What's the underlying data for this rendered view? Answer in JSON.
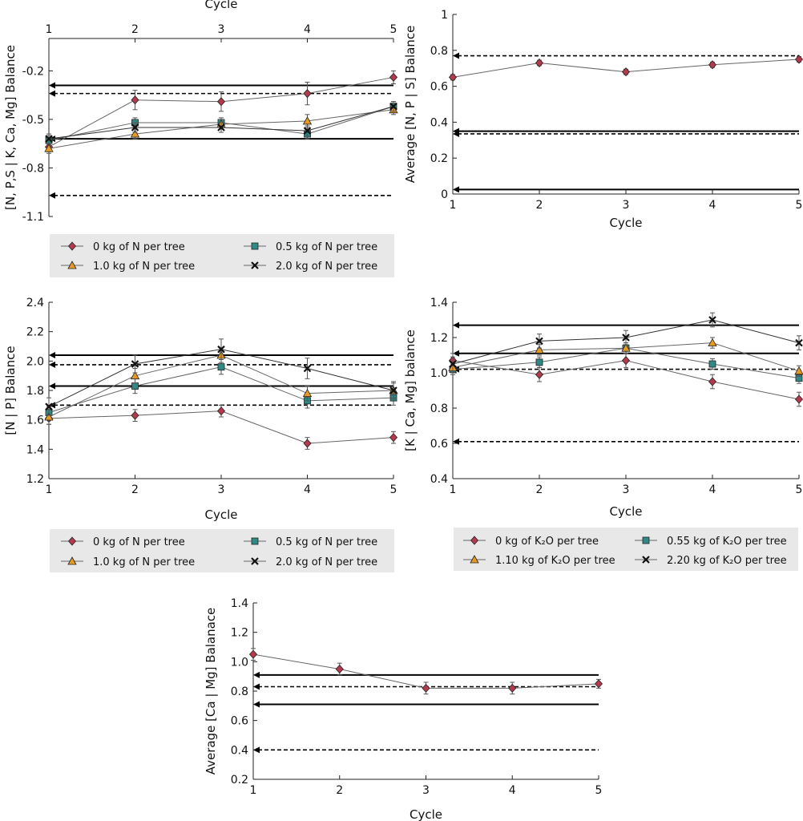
{
  "colors": {
    "s0": "#b13a4d",
    "s1": "#2f8a86",
    "s2": "#e69a24",
    "s3": "#111111",
    "line": "#666666",
    "ref": "#000000",
    "legend_bg": "#e8e8e8"
  },
  "chart_data": [
    {
      "type": "line",
      "xlabel": "Cycle",
      "xlabel_position": "top",
      "ylabel": "[N, P,S | K, Ca, Mg] Balance",
      "x": [
        1,
        2,
        3,
        4,
        5
      ],
      "xlim": [
        1,
        5
      ],
      "ylim": [
        -1.1,
        0.0
      ],
      "yticks": [
        -1.1,
        -0.8,
        -0.5,
        -0.2
      ],
      "ytick_labels": [
        "-1.1",
        "-0.8",
        "-0.5",
        "-0.2"
      ],
      "series": [
        {
          "name": "0 kg of N per tree",
          "marker": "diamond",
          "values": [
            -0.67,
            -0.38,
            -0.39,
            -0.34,
            -0.24
          ],
          "errors": [
            0.03,
            0.06,
            0.06,
            0.07,
            0.04
          ]
        },
        {
          "name": "0.5 kg of N per tree",
          "marker": "square",
          "values": [
            -0.63,
            -0.52,
            -0.52,
            -0.59,
            -0.42
          ],
          "errors": [
            0.03,
            0.03,
            0.03,
            0.03,
            0.03
          ]
        },
        {
          "name": "1.0 kg of N per tree",
          "marker": "triangle",
          "values": [
            -0.68,
            -0.59,
            -0.53,
            -0.51,
            -0.44
          ],
          "errors": [
            0.03,
            0.03,
            0.03,
            0.04,
            0.03
          ]
        },
        {
          "name": "2.0 kg of N per tree",
          "marker": "x",
          "values": [
            -0.62,
            -0.55,
            -0.55,
            -0.57,
            -0.42
          ],
          "errors": [
            0.03,
            0.03,
            0.03,
            0.03,
            0.03
          ]
        }
      ],
      "reference_lines": [
        {
          "y": -0.29,
          "style": "solid"
        },
        {
          "y": -0.34,
          "style": "dashed"
        },
        {
          "y": -0.62,
          "style": "solid"
        },
        {
          "y": -0.97,
          "style": "dashed"
        }
      ],
      "legend": {
        "placement": "below",
        "columns": 2
      }
    },
    {
      "type": "line",
      "xlabel": "Cycle",
      "ylabel": "Average [N, P | S] Balance",
      "x": [
        1,
        2,
        3,
        4,
        5
      ],
      "xlim": [
        1,
        5
      ],
      "ylim": [
        0,
        1.0
      ],
      "yticks": [
        0,
        0.2,
        0.4,
        0.6,
        0.8,
        1.0
      ],
      "ytick_labels": [
        "0",
        "0.2",
        "0.4",
        "0.6",
        "0.8",
        "1"
      ],
      "series": [
        {
          "name": "",
          "marker": "diamond",
          "values": [
            0.65,
            0.73,
            0.68,
            0.72,
            0.75
          ],
          "errors": [
            0.015,
            0.015,
            0.015,
            0.015,
            0.015
          ]
        }
      ],
      "reference_lines": [
        {
          "y": 0.77,
          "style": "dashed"
        },
        {
          "y": 0.35,
          "style": "solid"
        },
        {
          "y": 0.335,
          "style": "dashed"
        },
        {
          "y": 0.025,
          "style": "solid"
        }
      ]
    },
    {
      "type": "line",
      "xlabel": "Cycle",
      "ylabel": "[N | P] Balance",
      "x": [
        1,
        2,
        3,
        4,
        5
      ],
      "xlim": [
        1,
        5
      ],
      "ylim": [
        1.2,
        2.4
      ],
      "yticks": [
        1.2,
        1.4,
        1.6,
        1.8,
        2.0,
        2.2,
        2.4
      ],
      "ytick_labels": [
        "1.2",
        "1.4",
        "1.6",
        "1.8",
        "2.0",
        "2.2",
        "2.4"
      ],
      "series": [
        {
          "name": "0 kg of N per tree",
          "marker": "diamond",
          "values": [
            1.61,
            1.63,
            1.66,
            1.44,
            1.48
          ],
          "errors": [
            0.04,
            0.04,
            0.04,
            0.04,
            0.04
          ]
        },
        {
          "name": "0.5 kg of N per tree",
          "marker": "square",
          "values": [
            1.65,
            1.83,
            1.96,
            1.73,
            1.75
          ],
          "errors": [
            0.04,
            0.05,
            0.05,
            0.05,
            0.05
          ]
        },
        {
          "name": "1.0 kg of N per tree",
          "marker": "triangle",
          "values": [
            1.62,
            1.9,
            2.04,
            1.78,
            1.8
          ],
          "errors": [
            0.05,
            0.05,
            0.05,
            0.05,
            0.05
          ]
        },
        {
          "name": "2.0 kg of N per tree",
          "marker": "x",
          "values": [
            1.69,
            1.98,
            2.08,
            1.95,
            1.8
          ],
          "errors": [
            0.06,
            0.06,
            0.07,
            0.07,
            0.06
          ]
        }
      ],
      "reference_lines": [
        {
          "y": 2.04,
          "style": "solid"
        },
        {
          "y": 1.975,
          "style": "dashed"
        },
        {
          "y": 1.83,
          "style": "solid"
        },
        {
          "y": 1.7,
          "style": "dashed"
        }
      ],
      "legend": {
        "placement": "below",
        "columns": 2
      }
    },
    {
      "type": "line",
      "xlabel": "Cycle",
      "ylabel": "[K | Ca, Mg] balance",
      "x": [
        1,
        2,
        3,
        4,
        5
      ],
      "xlim": [
        1,
        5
      ],
      "ylim": [
        0.4,
        1.4
      ],
      "yticks": [
        0.4,
        0.6,
        0.8,
        1.0,
        1.2,
        1.4
      ],
      "ytick_labels": [
        "0.4",
        "0.6",
        "0.8",
        "1.0",
        "1.2",
        "1.4"
      ],
      "series": [
        {
          "name": "0 kg of K₂O per tree",
          "marker": "diamond",
          "values": [
            1.07,
            0.99,
            1.07,
            0.95,
            0.85
          ],
          "errors": [
            0.04,
            0.04,
            0.04,
            0.04,
            0.04
          ]
        },
        {
          "name": "0.55 kg of K₂O per tree",
          "marker": "square",
          "values": [
            1.02,
            1.06,
            1.14,
            1.05,
            0.97
          ],
          "errors": [
            0.03,
            0.03,
            0.03,
            0.03,
            0.03
          ]
        },
        {
          "name": "1.10 kg of K₂O per tree",
          "marker": "triangle",
          "values": [
            1.03,
            1.13,
            1.14,
            1.17,
            1.01
          ],
          "errors": [
            0.03,
            0.03,
            0.03,
            0.03,
            0.03
          ]
        },
        {
          "name": "2.20 kg of K₂O per tree",
          "marker": "x",
          "values": [
            1.05,
            1.18,
            1.2,
            1.3,
            1.17
          ],
          "errors": [
            0.04,
            0.04,
            0.04,
            0.04,
            0.04
          ]
        }
      ],
      "reference_lines": [
        {
          "y": 1.27,
          "style": "solid"
        },
        {
          "y": 1.11,
          "style": "solid"
        },
        {
          "y": 1.02,
          "style": "dashed"
        },
        {
          "y": 0.61,
          "style": "dashed"
        }
      ],
      "legend": {
        "placement": "below",
        "columns": 2
      }
    },
    {
      "type": "line",
      "xlabel": "Cycle",
      "ylabel": "Average [Ca | Mg] Balanace",
      "x": [
        1,
        2,
        3,
        4,
        5
      ],
      "xlim": [
        1,
        5
      ],
      "ylim": [
        0.2,
        1.4
      ],
      "yticks": [
        0.2,
        0.4,
        0.6,
        0.8,
        1.0,
        1.2,
        1.4
      ],
      "ytick_labels": [
        "0.2",
        "0.4",
        "0.6",
        "0.8",
        "1.0",
        "1.2",
        "1.4"
      ],
      "series": [
        {
          "name": "",
          "marker": "diamond",
          "values": [
            1.05,
            0.95,
            0.82,
            0.82,
            0.85
          ],
          "errors": [
            0.04,
            0.04,
            0.04,
            0.04,
            0.03
          ]
        }
      ],
      "reference_lines": [
        {
          "y": 0.91,
          "style": "solid"
        },
        {
          "y": 0.83,
          "style": "dashed"
        },
        {
          "y": 0.71,
          "style": "solid"
        },
        {
          "y": 0.4,
          "style": "dashed"
        }
      ]
    }
  ]
}
